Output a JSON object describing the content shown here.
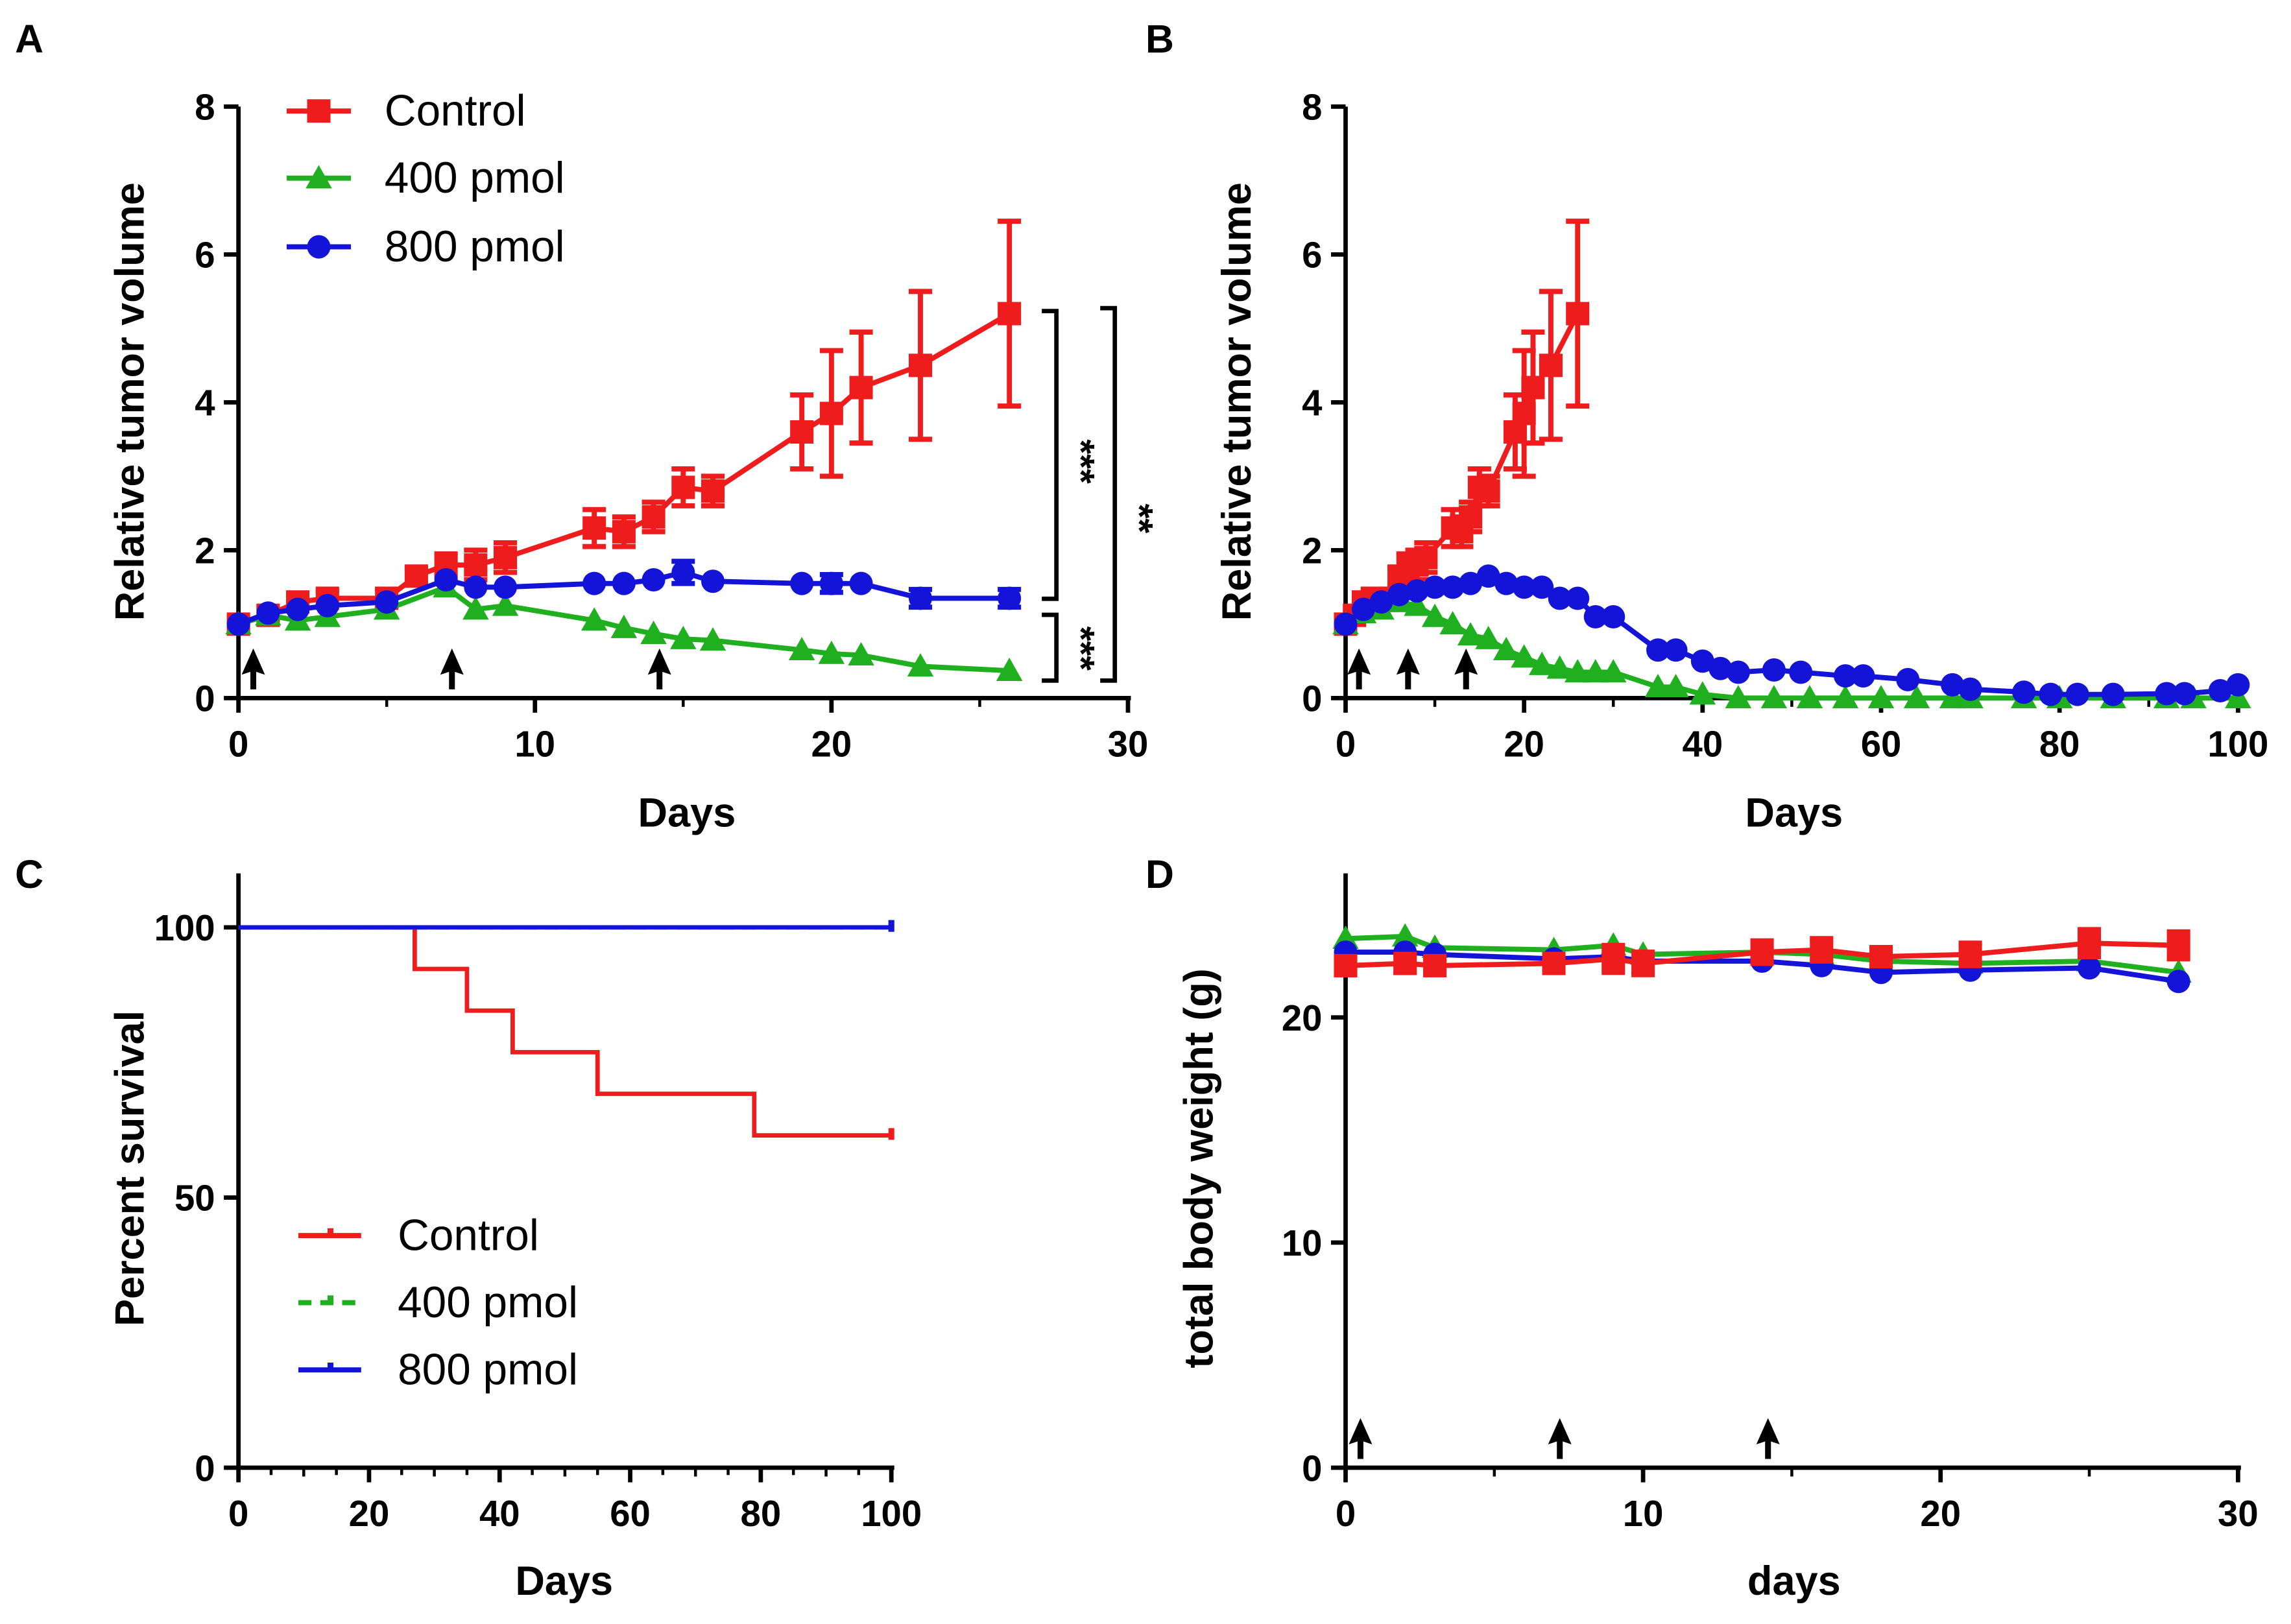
{
  "colors": {
    "control": "#ee1c1c",
    "p400": "#1faf1f",
    "p800": "#1414d8"
  },
  "chart_data": [
    {
      "panel": "A",
      "type": "line",
      "xlabel": "Days",
      "ylabel": "Relative tumor volume",
      "xlim": [
        0,
        30
      ],
      "ylim": [
        0,
        8
      ],
      "xticks": [
        0,
        10,
        20,
        30
      ],
      "yticks": [
        0,
        2,
        4,
        6,
        8
      ],
      "legend": [
        "Control",
        "400 pmol",
        "800 pmol"
      ],
      "legend_position": "top-left",
      "treatment_arrows_days": [
        0.5,
        7.2,
        14.2
      ],
      "significance": [
        {
          "label": "***",
          "between": [
            "Control",
            "800 pmol"
          ]
        },
        {
          "label": "***",
          "between": [
            "800 pmol",
            "400 pmol"
          ]
        },
        {
          "label": "**",
          "between": [
            "Control",
            "400 pmol"
          ]
        }
      ],
      "series": [
        {
          "name": "Control",
          "marker": "square",
          "x": [
            0,
            1,
            2,
            3,
            5,
            6,
            7,
            8,
            9,
            12,
            13,
            14,
            15,
            16,
            19,
            20,
            21,
            23,
            26
          ],
          "y": [
            1.0,
            1.12,
            1.3,
            1.35,
            1.35,
            1.65,
            1.8,
            1.8,
            1.9,
            2.3,
            2.25,
            2.45,
            2.85,
            2.8,
            3.6,
            3.85,
            4.2,
            4.5,
            5.2
          ],
          "err": [
            0.05,
            0.08,
            0.1,
            0.1,
            0.12,
            0.1,
            0.15,
            0.2,
            0.2,
            0.25,
            0.2,
            0.2,
            0.25,
            0.2,
            0.5,
            0.85,
            0.75,
            1.0,
            1.25
          ]
        },
        {
          "name": "400 pmol",
          "marker": "triangle",
          "x": [
            0,
            1,
            2,
            3,
            5,
            7,
            8,
            9,
            12,
            13,
            14,
            15,
            16,
            19,
            20,
            21,
            23,
            26
          ],
          "y": [
            1.0,
            1.12,
            1.05,
            1.1,
            1.2,
            1.5,
            1.2,
            1.25,
            1.05,
            0.95,
            0.87,
            0.8,
            0.78,
            0.65,
            0.6,
            0.58,
            0.43,
            0.37
          ],
          "err": [
            0,
            0,
            0,
            0,
            0,
            0.05,
            0,
            0,
            0,
            0,
            0,
            0,
            0,
            0,
            0,
            0,
            0,
            0
          ]
        },
        {
          "name": "800 pmol",
          "marker": "circle",
          "x": [
            0,
            1,
            2,
            3,
            5,
            7,
            8,
            9,
            12,
            13,
            14,
            15,
            16,
            19,
            20,
            21,
            23,
            26
          ],
          "y": [
            1.0,
            1.15,
            1.2,
            1.25,
            1.3,
            1.6,
            1.5,
            1.5,
            1.55,
            1.55,
            1.6,
            1.7,
            1.58,
            1.55,
            1.55,
            1.55,
            1.35,
            1.35
          ],
          "err": [
            0,
            0,
            0,
            0,
            0,
            0,
            0,
            0,
            0,
            0,
            0,
            0.15,
            0,
            0,
            0.12,
            0,
            0.12,
            0.12
          ]
        }
      ]
    },
    {
      "panel": "B",
      "type": "line",
      "xlabel": "Days",
      "ylabel": "Relative tumor volume",
      "xlim": [
        0,
        100
      ],
      "ylim": [
        0,
        8
      ],
      "xticks": [
        0,
        20,
        40,
        60,
        80,
        100
      ],
      "yticks": [
        0,
        2,
        4,
        6,
        8
      ],
      "treatment_arrows_days": [
        1.5,
        7,
        13.5
      ],
      "series": [
        {
          "name": "Control",
          "marker": "square",
          "x": [
            0,
            1,
            2,
            3,
            5,
            6,
            7,
            8,
            9,
            12,
            13,
            14,
            15,
            16,
            19,
            20,
            21,
            23,
            26
          ],
          "y": [
            1.0,
            1.12,
            1.3,
            1.35,
            1.35,
            1.65,
            1.8,
            1.8,
            1.9,
            2.3,
            2.25,
            2.45,
            2.85,
            2.8,
            3.6,
            3.85,
            4.2,
            4.5,
            5.2
          ],
          "err": [
            0.05,
            0.08,
            0.1,
            0.1,
            0.12,
            0.1,
            0.15,
            0.2,
            0.2,
            0.25,
            0.2,
            0.2,
            0.25,
            0.2,
            0.5,
            0.85,
            0.75,
            1.0,
            1.25
          ]
        },
        {
          "name": "400 pmol",
          "marker": "triangle",
          "x": [
            0,
            2,
            4,
            6,
            8,
            10,
            12,
            14,
            16,
            18,
            20,
            22,
            24,
            26,
            28,
            30,
            35,
            37,
            40,
            44,
            48,
            52,
            56,
            60,
            64,
            68,
            70,
            76,
            80,
            86,
            92,
            95,
            100
          ],
          "y": [
            1.0,
            1.15,
            1.2,
            1.3,
            1.25,
            1.1,
            1.0,
            0.85,
            0.8,
            0.65,
            0.55,
            0.45,
            0.4,
            0.35,
            0.35,
            0.35,
            0.15,
            0.15,
            0.05,
            0,
            0,
            0,
            0,
            0,
            0,
            0,
            0,
            0,
            0,
            0,
            0,
            0,
            0
          ]
        },
        {
          "name": "800 pmol",
          "marker": "circle",
          "x": [
            0,
            2,
            4,
            6,
            8,
            10,
            12,
            14,
            16,
            18,
            20,
            22,
            24,
            26,
            28,
            30,
            35,
            37,
            40,
            42,
            44,
            48,
            51,
            56,
            58,
            63,
            68,
            70,
            76,
            79,
            82,
            86,
            92,
            94,
            98,
            100
          ],
          "y": [
            1.0,
            1.2,
            1.3,
            1.4,
            1.45,
            1.5,
            1.5,
            1.55,
            1.65,
            1.55,
            1.5,
            1.5,
            1.35,
            1.35,
            1.1,
            1.1,
            0.65,
            0.65,
            0.5,
            0.4,
            0.35,
            0.38,
            0.35,
            0.3,
            0.3,
            0.25,
            0.18,
            0.12,
            0.08,
            0.05,
            0.05,
            0.05,
            0.06,
            0.06,
            0.1,
            0.18
          ]
        }
      ]
    },
    {
      "panel": "C",
      "type": "line",
      "xlabel": "Days",
      "ylabel": "Percent survival",
      "xlim": [
        0,
        100
      ],
      "ylim": [
        0,
        110
      ],
      "xticks": [
        0,
        20,
        40,
        60,
        80,
        100
      ],
      "yticks": [
        0,
        50,
        100
      ],
      "legend": [
        "Control",
        "400 pmol",
        "800 pmol"
      ],
      "legend_position": "bottom-left",
      "series": [
        {
          "name": "Control",
          "style": "step",
          "x": [
            0,
            27,
            35,
            42,
            55,
            79,
            100
          ],
          "y": [
            100,
            92.3,
            84.6,
            76.9,
            69.2,
            61.5,
            61.5
          ]
        },
        {
          "name": "400 pmol",
          "style": "step-dashed",
          "x": [
            0,
            100
          ],
          "y": [
            100,
            100
          ]
        },
        {
          "name": "800 pmol",
          "style": "step",
          "x": [
            0,
            100
          ],
          "y": [
            100,
            100
          ]
        }
      ]
    },
    {
      "panel": "D",
      "type": "line",
      "xlabel": "days",
      "ylabel": "total body weight (g)",
      "xlim": [
        0,
        30
      ],
      "ylim": [
        0,
        26.4
      ],
      "xticks": [
        0,
        10,
        20,
        30
      ],
      "yticks": [
        0,
        10,
        20
      ],
      "treatment_arrows_days": [
        0.5,
        7.2,
        14.2
      ],
      "series": [
        {
          "name": "400 pmol",
          "marker": "triangle",
          "x": [
            0,
            2,
            3,
            7,
            9,
            10,
            14,
            16,
            18,
            21,
            25,
            28
          ],
          "y": [
            23.5,
            23.6,
            23.1,
            23.0,
            23.2,
            22.8,
            22.9,
            22.8,
            22.5,
            22.4,
            22.5,
            22.0
          ]
        },
        {
          "name": "800 pmol",
          "marker": "circle",
          "x": [
            0,
            2,
            3,
            7,
            9,
            10,
            14,
            16,
            18,
            21,
            25,
            28
          ],
          "y": [
            22.9,
            22.9,
            22.8,
            22.6,
            22.7,
            22.5,
            22.5,
            22.3,
            22.0,
            22.1,
            22.2,
            21.6
          ]
        },
        {
          "name": "Control",
          "marker": "square",
          "x": [
            0,
            2,
            3,
            7,
            9,
            10,
            14,
            16,
            18,
            21,
            25,
            28
          ],
          "y": [
            22.3,
            22.4,
            22.3,
            22.4,
            22.6,
            22.4,
            22.9,
            23.0,
            22.7,
            22.8,
            23.3,
            23.2
          ],
          "err": [
            0.4,
            0.4,
            0.3,
            0.4,
            0.6,
            0.5,
            0.5,
            0.5,
            0.4,
            0.5,
            0.6,
            0.6
          ]
        }
      ]
    }
  ]
}
